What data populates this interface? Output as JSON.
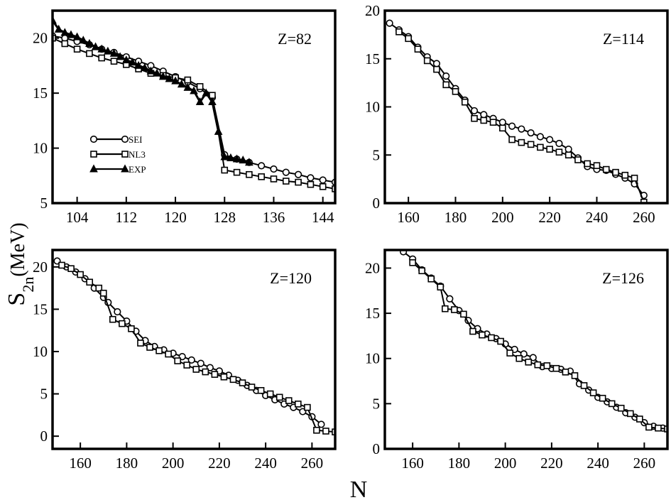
{
  "figure": {
    "ylabel_main": "S",
    "ylabel_sub": "2n",
    "ylabel_unit": "(MeV)",
    "xlabel": "N"
  },
  "chart_data": [
    {
      "type": "line",
      "label": "Z=82",
      "xlim": [
        100,
        146
      ],
      "ylim": [
        5,
        22.5
      ],
      "xticks": [
        104,
        112,
        120,
        128,
        136,
        144
      ],
      "yticks": [
        5,
        10,
        15,
        20
      ],
      "legend": {
        "placement": "left-middle",
        "entries": [
          {
            "name": "SEI",
            "marker": "circle"
          },
          {
            "name": "NL3",
            "marker": "square"
          },
          {
            "name": "EXP",
            "marker": "triangle"
          }
        ]
      },
      "series": [
        {
          "name": "SEI",
          "marker": "circle",
          "points": [
            [
              100,
              20.2
            ],
            [
              102,
              20.0
            ],
            [
              104,
              19.7
            ],
            [
              106,
              19.4
            ],
            [
              108,
              19.0
            ],
            [
              110,
              18.7
            ],
            [
              112,
              18.3
            ],
            [
              114,
              17.9
            ],
            [
              116,
              17.5
            ],
            [
              118,
              17.0
            ],
            [
              120,
              16.5
            ],
            [
              122,
              16.0
            ],
            [
              124,
              15.4
            ],
            [
              126,
              14.6
            ],
            [
              128,
              9.4
            ],
            [
              130,
              9.0
            ],
            [
              132,
              8.7
            ],
            [
              134,
              8.4
            ],
            [
              136,
              8.1
            ],
            [
              138,
              7.8
            ],
            [
              140,
              7.6
            ],
            [
              142,
              7.3
            ],
            [
              144,
              7.1
            ],
            [
              146,
              6.9
            ]
          ]
        },
        {
          "name": "NL3",
          "marker": "square",
          "points": [
            [
              100,
              20.0
            ],
            [
              102,
              19.5
            ],
            [
              104,
              19.0
            ],
            [
              106,
              18.6
            ],
            [
              108,
              18.2
            ],
            [
              110,
              17.9
            ],
            [
              112,
              17.6
            ],
            [
              114,
              17.2
            ],
            [
              116,
              16.8
            ],
            [
              118,
              16.6
            ],
            [
              120,
              16.4
            ],
            [
              122,
              16.2
            ],
            [
              124,
              15.6
            ],
            [
              126,
              14.8
            ],
            [
              128,
              8.0
            ],
            [
              130,
              7.8
            ],
            [
              132,
              7.6
            ],
            [
              134,
              7.4
            ],
            [
              136,
              7.2
            ],
            [
              138,
              7.0
            ],
            [
              140,
              6.9
            ],
            [
              142,
              6.7
            ],
            [
              144,
              6.5
            ],
            [
              146,
              6.3
            ]
          ]
        },
        {
          "name": "EXP",
          "marker": "triangle",
          "points": [
            [
              100,
              21.6
            ],
            [
              101,
              20.8
            ],
            [
              102,
              20.5
            ],
            [
              103,
              20.3
            ],
            [
              104,
              20.1
            ],
            [
              105,
              19.8
            ],
            [
              106,
              19.5
            ],
            [
              107,
              19.2
            ],
            [
              108,
              19.0
            ],
            [
              109,
              18.8
            ],
            [
              110,
              18.6
            ],
            [
              111,
              18.3
            ],
            [
              112,
              18.0
            ],
            [
              113,
              17.8
            ],
            [
              114,
              17.5
            ],
            [
              115,
              17.3
            ],
            [
              116,
              17.0
            ],
            [
              117,
              16.8
            ],
            [
              118,
              16.5
            ],
            [
              119,
              16.3
            ],
            [
              120,
              16.1
            ],
            [
              121,
              15.8
            ],
            [
              122,
              15.5
            ],
            [
              123,
              15.2
            ],
            [
              124,
              14.2
            ],
            [
              125,
              15.0
            ],
            [
              126,
              14.2
            ],
            [
              127,
              11.5
            ],
            [
              128,
              9.2
            ],
            [
              129,
              9.1
            ],
            [
              130,
              9.0
            ],
            [
              131,
              8.9
            ],
            [
              132,
              8.7
            ]
          ]
        }
      ]
    },
    {
      "type": "line",
      "label": "Z=114",
      "xlim": [
        150,
        270
      ],
      "ylim": [
        0,
        20
      ],
      "xticks": [
        160,
        180,
        200,
        220,
        240,
        260
      ],
      "yticks": [
        0,
        5,
        10,
        15,
        20
      ],
      "series": [
        {
          "name": "SEI",
          "marker": "circle",
          "points": [
            [
              152,
              18.7
            ],
            [
              156,
              18.0
            ],
            [
              160,
              17.3
            ],
            [
              164,
              16.2
            ],
            [
              168,
              15.2
            ],
            [
              172,
              14.5
            ],
            [
              176,
              13.2
            ],
            [
              180,
              11.9
            ],
            [
              184,
              10.7
            ],
            [
              188,
              9.6
            ],
            [
              192,
              9.2
            ],
            [
              196,
              8.8
            ],
            [
              200,
              8.4
            ],
            [
              204,
              8.0
            ],
            [
              208,
              7.7
            ],
            [
              212,
              7.3
            ],
            [
              216,
              6.9
            ],
            [
              220,
              6.6
            ],
            [
              224,
              6.2
            ],
            [
              228,
              5.6
            ],
            [
              232,
              4.7
            ],
            [
              236,
              3.8
            ],
            [
              240,
              3.5
            ],
            [
              244,
              3.4
            ],
            [
              248,
              3.0
            ],
            [
              252,
              2.6
            ],
            [
              256,
              2.0
            ],
            [
              260,
              0.8
            ]
          ]
        },
        {
          "name": "NL3",
          "marker": "square",
          "points": [
            [
              156,
              17.8
            ],
            [
              160,
              17.1
            ],
            [
              164,
              16.0
            ],
            [
              168,
              14.8
            ],
            [
              172,
              13.9
            ],
            [
              176,
              12.3
            ],
            [
              180,
              11.6
            ],
            [
              184,
              10.5
            ],
            [
              188,
              8.8
            ],
            [
              192,
              8.6
            ],
            [
              196,
              8.4
            ],
            [
              200,
              7.8
            ],
            [
              204,
              6.6
            ],
            [
              208,
              6.3
            ],
            [
              212,
              6.1
            ],
            [
              216,
              5.8
            ],
            [
              220,
              5.6
            ],
            [
              224,
              5.3
            ],
            [
              228,
              5.0
            ],
            [
              232,
              4.5
            ],
            [
              236,
              4.1
            ],
            [
              240,
              3.9
            ],
            [
              244,
              3.5
            ],
            [
              248,
              3.2
            ],
            [
              252,
              2.9
            ],
            [
              256,
              2.6
            ],
            [
              260,
              0.1
            ]
          ]
        }
      ]
    },
    {
      "type": "line",
      "label": "Z=120",
      "xlim": [
        148,
        270
      ],
      "ylim": [
        -1.5,
        22
      ],
      "xticks": [
        160,
        180,
        200,
        220,
        240,
        260
      ],
      "yticks": [
        0,
        5,
        10,
        15,
        20
      ],
      "series": [
        {
          "name": "SEI",
          "marker": "circle",
          "points": [
            [
              150,
              20.7
            ],
            [
              154,
              20.0
            ],
            [
              158,
              19.4
            ],
            [
              162,
              18.6
            ],
            [
              166,
              17.5
            ],
            [
              170,
              16.4
            ],
            [
              172,
              15.8
            ],
            [
              176,
              14.7
            ],
            [
              180,
              13.6
            ],
            [
              184,
              12.4
            ],
            [
              188,
              11.3
            ],
            [
              192,
              10.6
            ],
            [
              196,
              10.2
            ],
            [
              200,
              9.8
            ],
            [
              204,
              9.4
            ],
            [
              208,
              9.0
            ],
            [
              212,
              8.6
            ],
            [
              216,
              8.1
            ],
            [
              220,
              7.7
            ],
            [
              224,
              7.2
            ],
            [
              228,
              6.6
            ],
            [
              232,
              6.0
            ],
            [
              236,
              5.4
            ],
            [
              240,
              4.8
            ],
            [
              244,
              4.3
            ],
            [
              248,
              3.8
            ],
            [
              252,
              3.4
            ],
            [
              256,
              2.9
            ],
            [
              260,
              2.3
            ],
            [
              264,
              1.4
            ]
          ]
        },
        {
          "name": "NL3",
          "marker": "square",
          "points": [
            [
              152,
              20.2
            ],
            [
              156,
              19.8
            ],
            [
              160,
              19.1
            ],
            [
              164,
              18.2
            ],
            [
              168,
              17.5
            ],
            [
              170,
              16.9
            ],
            [
              174,
              13.8
            ],
            [
              178,
              13.3
            ],
            [
              182,
              12.7
            ],
            [
              186,
              11.0
            ],
            [
              190,
              10.5
            ],
            [
              194,
              10.1
            ],
            [
              198,
              9.7
            ],
            [
              202,
              8.9
            ],
            [
              206,
              8.4
            ],
            [
              210,
              7.9
            ],
            [
              214,
              7.6
            ],
            [
              218,
              7.3
            ],
            [
              222,
              7.0
            ],
            [
              226,
              6.7
            ],
            [
              230,
              6.3
            ],
            [
              234,
              5.8
            ],
            [
              238,
              5.4
            ],
            [
              242,
              5.0
            ],
            [
              246,
              4.6
            ],
            [
              250,
              4.2
            ],
            [
              254,
              3.8
            ],
            [
              258,
              3.4
            ],
            [
              262,
              0.7
            ],
            [
              266,
              0.6
            ],
            [
              270,
              0.5
            ]
          ]
        }
      ]
    },
    {
      "type": "line",
      "label": "Z=126",
      "xlim": [
        148,
        270
      ],
      "ylim": [
        0,
        22
      ],
      "xticks": [
        160,
        180,
        200,
        220,
        240,
        260
      ],
      "yticks": [
        0,
        5,
        10,
        15,
        20
      ],
      "series": [
        {
          "name": "SEI",
          "marker": "circle",
          "points": [
            [
              156,
              21.8
            ],
            [
              160,
              21.0
            ],
            [
              164,
              19.8
            ],
            [
              168,
              18.9
            ],
            [
              172,
              18.0
            ],
            [
              176,
              16.6
            ],
            [
              180,
              15.3
            ],
            [
              184,
              14.2
            ],
            [
              188,
              13.3
            ],
            [
              192,
              12.7
            ],
            [
              196,
              12.2
            ],
            [
              200,
              11.6
            ],
            [
              204,
              11.0
            ],
            [
              208,
              10.5
            ],
            [
              212,
              10.1
            ],
            [
              216,
              9.1
            ],
            [
              220,
              8.9
            ],
            [
              224,
              8.8
            ],
            [
              228,
              8.6
            ],
            [
              232,
              7.2
            ],
            [
              236,
              6.5
            ],
            [
              240,
              5.7
            ],
            [
              244,
              5.2
            ],
            [
              248,
              4.6
            ],
            [
              252,
              4.0
            ],
            [
              256,
              3.5
            ],
            [
              260,
              2.9
            ],
            [
              264,
              2.5
            ],
            [
              268,
              2.3
            ]
          ]
        },
        {
          "name": "NL3",
          "marker": "square",
          "points": [
            [
              160,
              20.6
            ],
            [
              164,
              19.7
            ],
            [
              168,
              18.8
            ],
            [
              172,
              17.9
            ],
            [
              174,
              15.5
            ],
            [
              178,
              15.4
            ],
            [
              182,
              14.9
            ],
            [
              186,
              13.0
            ],
            [
              190,
              12.6
            ],
            [
              194,
              12.3
            ],
            [
              198,
              11.9
            ],
            [
              202,
              10.6
            ],
            [
              206,
              10.0
            ],
            [
              210,
              9.6
            ],
            [
              214,
              9.3
            ],
            [
              218,
              9.2
            ],
            [
              222,
              8.9
            ],
            [
              226,
              8.5
            ],
            [
              230,
              8.1
            ],
            [
              234,
              7.0
            ],
            [
              238,
              6.2
            ],
            [
              242,
              5.6
            ],
            [
              246,
              5.0
            ],
            [
              250,
              4.5
            ],
            [
              254,
              3.9
            ],
            [
              258,
              3.3
            ],
            [
              262,
              2.4
            ],
            [
              266,
              2.3
            ],
            [
              270,
              2.2
            ]
          ]
        }
      ]
    }
  ]
}
